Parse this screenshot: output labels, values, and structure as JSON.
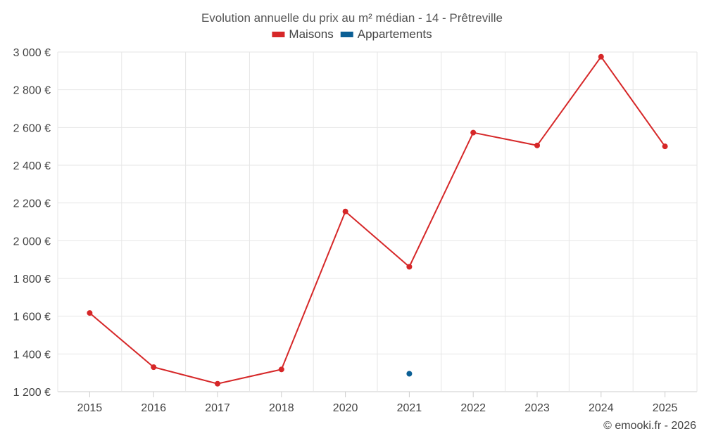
{
  "chart_data": {
    "type": "line",
    "title": "Evolution annuelle du prix au m² médian - 14 - Prêtreville",
    "categories": [
      "2015",
      "2016",
      "2017",
      "2018",
      "2020",
      "2021",
      "2022",
      "2023",
      "2024",
      "2025"
    ],
    "series": [
      {
        "name": "Maisons",
        "color": "#d62728",
        "values": [
          1617,
          1330,
          1242,
          1318,
          2155,
          1862,
          2573,
          2505,
          2975,
          2500
        ]
      },
      {
        "name": "Appartements",
        "color": "#0b5f95",
        "values": [
          null,
          null,
          null,
          null,
          null,
          1295,
          null,
          null,
          null,
          null
        ]
      }
    ],
    "ylim": [
      1200,
      3000
    ],
    "yticks": [
      1200,
      1400,
      1600,
      1800,
      2000,
      2200,
      2400,
      2600,
      2800,
      3000
    ],
    "ytick_labels": [
      "1 200 €",
      "1 400 €",
      "1 600 €",
      "1 800 €",
      "2 000 €",
      "2 200 €",
      "2 400 €",
      "2 600 €",
      "2 800 €",
      "3 000 €"
    ],
    "xlabel": "",
    "ylabel": "",
    "grid": true,
    "legend_position": "top-center"
  },
  "credit": "© emooki.fr - 2026",
  "colors": {
    "grid": "#e6e6e6",
    "axis_text": "#444444",
    "title_text": "#555555"
  }
}
